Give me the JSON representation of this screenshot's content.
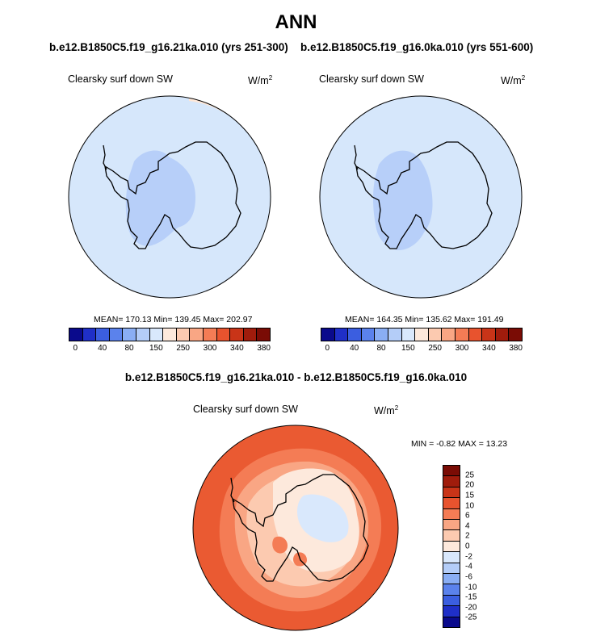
{
  "title": "ANN",
  "diff_title": "b.e12.B1850C5.f19_g16.21ka.010 - b.e12.B1850C5.f19_g16.0ka.010",
  "panels": [
    {
      "case": "b.e12.B1850C5.f19_g16.21ka.010 (yrs 251-300)",
      "variable": "Clearsky surf down SW",
      "units": "W/m",
      "units_exp": "2",
      "stats": "MEAN= 170.13  Min= 139.45  Max= 202.97"
    },
    {
      "case": "b.e12.B1850C5.f19_g16.0ka.010 (yrs 551-600)",
      "variable": "Clearsky surf down SW",
      "units": "W/m",
      "units_exp": "2",
      "stats": "MEAN= 164.35  Min= 135.62  Max= 191.49"
    }
  ],
  "diff_panel": {
    "variable": "Clearsky surf down SW",
    "units": "W/m",
    "units_exp": "2",
    "stats": "MIN =  -0.82 MAX =  13.23"
  },
  "colorbar_abs": {
    "colors": [
      "#0a0a8c",
      "#1f2fc8",
      "#3b5ee0",
      "#5b82ec",
      "#8aaef4",
      "#b4cdf8",
      "#d9e8fc",
      "#fde9dc",
      "#fccab0",
      "#f9a684",
      "#f47c55",
      "#e8532e",
      "#c93418",
      "#a01c0c",
      "#7a0c05"
    ],
    "tick_labels": [
      "0",
      "40",
      "80",
      "150",
      "250",
      "300",
      "340",
      "380"
    ]
  },
  "colorbar_diff": {
    "colors": [
      "#7a0c05",
      "#a01c0c",
      "#c93418",
      "#e8532e",
      "#f47c55",
      "#f9a684",
      "#fccab0",
      "#fde9dc",
      "#d9e8fc",
      "#b4cdf8",
      "#8aaef4",
      "#5b82ec",
      "#3b5ee0",
      "#1f2fc8",
      "#0a0a8c"
    ],
    "tick_labels": [
      "25",
      "20",
      "15",
      "10",
      "6",
      "4",
      "2",
      "0",
      "-2",
      "-4",
      "-6",
      "-10",
      "-15",
      "-20",
      "-25"
    ]
  },
  "map_colors": {
    "ocean_abs": "#d6e7fb",
    "interior_abs": "#b7cff9",
    "warm_rim": "#fde7d8",
    "diff_outer": "#ea5a32",
    "diff_mid": "#f47c55",
    "diff_inner": "#f9a684",
    "diff_light": "#fccab0",
    "diff_land": "#fde9dc",
    "diff_blue": "#d9e8fc"
  }
}
